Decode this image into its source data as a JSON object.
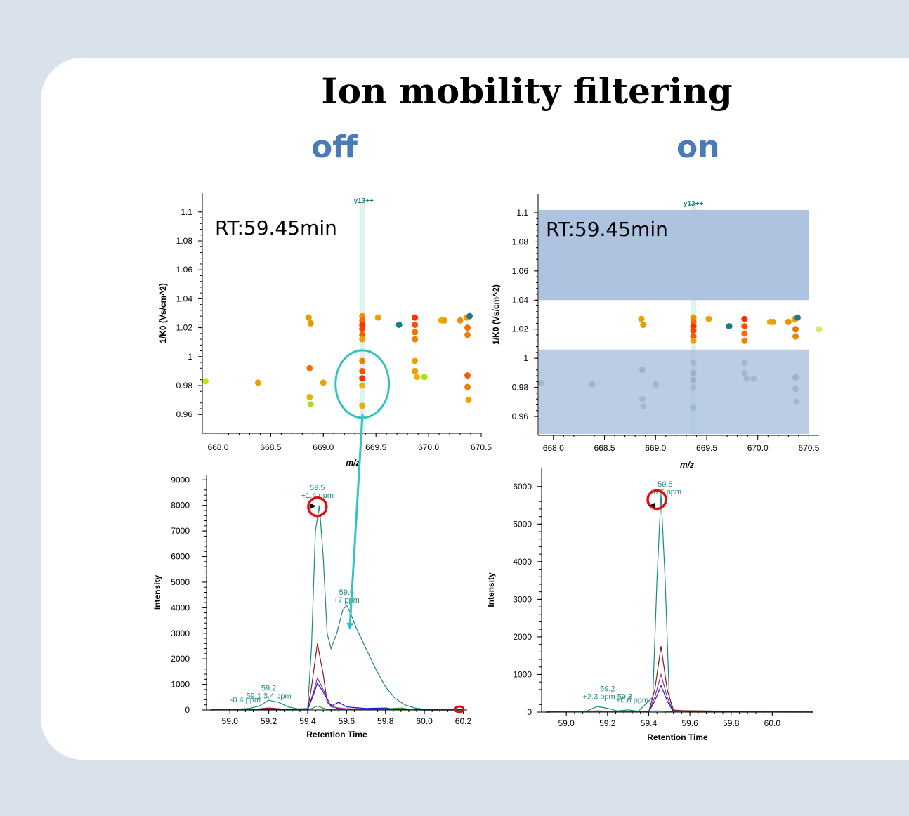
{
  "slide": {
    "title": "Ion mobility filtering",
    "off_label": "off",
    "on_label": "on",
    "colors": {
      "title": "#000000",
      "label": "#4a7ab8",
      "background": "#d9e2ea",
      "card": "#ffffff"
    }
  },
  "chart_data": [
    {
      "id": "scatter_off",
      "type": "scatter",
      "xlabel": "m/z",
      "ylabel": "1/K0 (Vs/cm^2)",
      "xlim": [
        667.85,
        670.5
      ],
      "ylim": [
        0.947,
        1.113
      ],
      "xticks": [
        "668.0",
        "668.5",
        "669.0",
        "669.5",
        "670.0",
        "670.5"
      ],
      "yticks": [
        "0.96",
        "0.98",
        "1",
        "1.02",
        "1.04",
        "1.06",
        "1.08",
        "1.1"
      ],
      "annotation": "RT:59.45min",
      "ion_label": "y13++",
      "ion_mz": 669.37,
      "highlight": {
        "mz": 669.37,
        "k0": 0.982
      },
      "points": [
        [
          667.88,
          0.983,
          "#c8e01a"
        ],
        [
          668.38,
          0.982,
          "#f0a000"
        ],
        [
          668.86,
          1.027,
          "#e8a000"
        ],
        [
          668.88,
          1.023,
          "#e89a00"
        ],
        [
          668.87,
          0.992,
          "#f07000"
        ],
        [
          668.87,
          0.972,
          "#e8b000"
        ],
        [
          668.88,
          0.967,
          "#a8e020"
        ],
        [
          669.0,
          0.982,
          "#f0a000"
        ],
        [
          669.37,
          1.028,
          "#f09000"
        ],
        [
          669.37,
          1.025,
          "#f07000"
        ],
        [
          669.37,
          1.022,
          "#ff3000"
        ],
        [
          669.37,
          1.019,
          "#ff4000"
        ],
        [
          669.37,
          1.015,
          "#f06000"
        ],
        [
          669.37,
          1.012,
          "#f0a000"
        ],
        [
          669.37,
          0.997,
          "#f08000"
        ],
        [
          669.37,
          0.99,
          "#ff5000"
        ],
        [
          669.37,
          0.985,
          "#ff3000"
        ],
        [
          669.37,
          0.98,
          "#f0b000"
        ],
        [
          669.37,
          0.966,
          "#e8b000"
        ],
        [
          669.52,
          1.027,
          "#f0a000"
        ],
        [
          669.72,
          1.022,
          "#1a7a8a"
        ],
        [
          669.87,
          1.027,
          "#ff3000"
        ],
        [
          669.87,
          1.022,
          "#ff5000"
        ],
        [
          669.87,
          1.017,
          "#f07000"
        ],
        [
          669.87,
          1.012,
          "#f08000"
        ],
        [
          669.87,
          0.997,
          "#f0a000"
        ],
        [
          669.87,
          0.99,
          "#e8a000"
        ],
        [
          669.89,
          0.986,
          "#f0b000"
        ],
        [
          669.96,
          0.986,
          "#a8e020"
        ],
        [
          670.12,
          1.025,
          "#e8b000"
        ],
        [
          670.15,
          1.025,
          "#e8a000"
        ],
        [
          670.3,
          1.025,
          "#f09000"
        ],
        [
          670.36,
          1.027,
          "#f0a000"
        ],
        [
          670.39,
          1.028,
          "#1a7a8a"
        ],
        [
          670.37,
          1.02,
          "#f07000"
        ],
        [
          670.37,
          1.015,
          "#f08000"
        ],
        [
          670.37,
          0.987,
          "#f06000"
        ],
        [
          670.37,
          0.979,
          "#f08000"
        ],
        [
          670.38,
          0.97,
          "#f0a000"
        ]
      ]
    },
    {
      "id": "scatter_on",
      "type": "scatter",
      "xlabel": "m/z",
      "ylabel": "1/K0 (Vs/cm^2)",
      "xlim": [
        667.85,
        670.6
      ],
      "ylim": [
        0.947,
        1.113
      ],
      "xticks": [
        "668.0",
        "668.5",
        "669.0",
        "669.5",
        "670.0",
        "670.5"
      ],
      "yticks": [
        "0.96",
        "0.98",
        "1",
        "1.02",
        "1.04",
        "1.06",
        "1.08",
        "1.1"
      ],
      "annotation": "RT:59.45min",
      "ion_label": "y13++",
      "ion_mz": 669.37,
      "filter_window": [
        1.006,
        1.04
      ],
      "points": [
        [
          667.88,
          0.983,
          "#88b060"
        ],
        [
          668.38,
          0.982,
          "#908060"
        ],
        [
          668.86,
          1.027,
          "#e8a000"
        ],
        [
          668.88,
          1.023,
          "#e89a00"
        ],
        [
          668.87,
          0.992,
          "#a06060"
        ],
        [
          668.87,
          0.972,
          "#90a060"
        ],
        [
          668.88,
          0.967,
          "#70b050"
        ],
        [
          669.0,
          0.982,
          "#908060"
        ],
        [
          669.37,
          1.028,
          "#f09000"
        ],
        [
          669.37,
          1.025,
          "#f07000"
        ],
        [
          669.37,
          1.022,
          "#ff3000"
        ],
        [
          669.37,
          1.019,
          "#ff4000"
        ],
        [
          669.37,
          1.015,
          "#f06000"
        ],
        [
          669.37,
          1.012,
          "#f0a000"
        ],
        [
          669.37,
          0.997,
          "#909060"
        ],
        [
          669.37,
          0.99,
          "#a06060"
        ],
        [
          669.37,
          0.985,
          "#a05050"
        ],
        [
          669.37,
          0.98,
          "#a0a060"
        ],
        [
          669.37,
          0.966,
          "#909060"
        ],
        [
          669.52,
          1.027,
          "#f0a000"
        ],
        [
          669.72,
          1.022,
          "#1a7a8a"
        ],
        [
          669.87,
          1.027,
          "#ff3000"
        ],
        [
          669.87,
          1.022,
          "#ff5000"
        ],
        [
          669.87,
          1.017,
          "#f07000"
        ],
        [
          669.87,
          1.012,
          "#f08000"
        ],
        [
          669.87,
          0.997,
          "#909060"
        ],
        [
          669.87,
          0.99,
          "#909060"
        ],
        [
          669.89,
          0.986,
          "#909060"
        ],
        [
          669.96,
          0.986,
          "#70b050"
        ],
        [
          670.12,
          1.025,
          "#e8b000"
        ],
        [
          670.15,
          1.025,
          "#e8a000"
        ],
        [
          670.3,
          1.025,
          "#f09000"
        ],
        [
          670.36,
          1.027,
          "#f0a000"
        ],
        [
          670.39,
          1.028,
          "#1a7a8a"
        ],
        [
          670.37,
          1.02,
          "#f07000"
        ],
        [
          670.37,
          1.015,
          "#f08000"
        ],
        [
          670.6,
          1.02,
          "#d8e860"
        ],
        [
          670.37,
          0.987,
          "#a06060"
        ],
        [
          670.37,
          0.979,
          "#a07070"
        ],
        [
          670.38,
          0.97,
          "#909060"
        ]
      ]
    },
    {
      "id": "xic_off",
      "type": "line",
      "xlabel": "Retention Time",
      "ylabel": "Intensity",
      "xlim": [
        58.88,
        60.22
      ],
      "ylim": [
        0,
        9200
      ],
      "xticks": [
        "59.0",
        "59.2",
        "59.4",
        "59.6",
        "59.8",
        "60.0",
        "60.2"
      ],
      "yticks": [
        "0",
        "1000",
        "2000",
        "3000",
        "4000",
        "5000",
        "6000",
        "7000",
        "8000",
        "9000"
      ],
      "apex_marker": [
        59.45,
        8000
      ],
      "end_marker": [
        60.18,
        0
      ],
      "series": [
        {
          "color": "#1a8a80",
          "points": [
            [
              58.9,
              0
            ],
            [
              59.0,
              20
            ],
            [
              59.1,
              60
            ],
            [
              59.15,
              150
            ],
            [
              59.2,
              380
            ],
            [
              59.25,
              300
            ],
            [
              59.3,
              120
            ],
            [
              59.35,
              40
            ],
            [
              59.4,
              60
            ],
            [
              59.42,
              2500
            ],
            [
              59.44,
              7000
            ],
            [
              59.46,
              8000
            ],
            [
              59.48,
              6000
            ],
            [
              59.5,
              3000
            ],
            [
              59.52,
              2400
            ],
            [
              59.55,
              3000
            ],
            [
              59.58,
              3900
            ],
            [
              59.6,
              4100
            ],
            [
              59.62,
              3800
            ],
            [
              59.65,
              3200
            ],
            [
              59.7,
              2400
            ],
            [
              59.75,
              1600
            ],
            [
              59.8,
              900
            ],
            [
              59.85,
              450
            ],
            [
              59.9,
              200
            ],
            [
              59.95,
              80
            ],
            [
              60.0,
              30
            ],
            [
              60.2,
              0
            ]
          ]
        },
        {
          "color": "#8b1a1a",
          "points": [
            [
              58.9,
              0
            ],
            [
              59.15,
              40
            ],
            [
              59.2,
              80
            ],
            [
              59.3,
              20
            ],
            [
              59.4,
              20
            ],
            [
              59.42,
              900
            ],
            [
              59.45,
              2600
            ],
            [
              59.48,
              1400
            ],
            [
              59.5,
              300
            ],
            [
              59.55,
              60
            ],
            [
              59.6,
              50
            ],
            [
              60.0,
              10
            ],
            [
              60.2,
              0
            ]
          ]
        },
        {
          "color": "#9a30b0",
          "points": [
            [
              58.9,
              0
            ],
            [
              59.2,
              40
            ],
            [
              59.4,
              20
            ],
            [
              59.43,
              700
            ],
            [
              59.45,
              1250
            ],
            [
              59.48,
              800
            ],
            [
              59.52,
              120
            ],
            [
              59.6,
              40
            ],
            [
              60.0,
              0
            ],
            [
              60.2,
              0
            ]
          ]
        },
        {
          "color": "#1a1ad0",
          "points": [
            [
              58.9,
              0
            ],
            [
              59.2,
              20
            ],
            [
              59.4,
              10
            ],
            [
              59.43,
              600
            ],
            [
              59.45,
              1050
            ],
            [
              59.48,
              700
            ],
            [
              59.52,
              150
            ],
            [
              59.56,
              300
            ],
            [
              59.6,
              120
            ],
            [
              59.7,
              60
            ],
            [
              59.8,
              80
            ],
            [
              59.85,
              30
            ],
            [
              60.0,
              0
            ],
            [
              60.2,
              0
            ]
          ]
        },
        {
          "color": "#20a040",
          "points": [
            [
              58.9,
              0
            ],
            [
              59.4,
              0
            ],
            [
              59.45,
              150
            ],
            [
              59.5,
              20
            ],
            [
              59.8,
              40
            ],
            [
              59.88,
              80
            ],
            [
              59.95,
              0
            ],
            [
              60.2,
              0
            ]
          ]
        }
      ],
      "labels": [
        {
          "lines": [
            "59.5",
            "+1.4 ppm"
          ],
          "at": [
            59.45,
            8600
          ]
        },
        {
          "lines": [
            "59.6",
            "+7 ppm"
          ],
          "at": [
            59.6,
            4500
          ]
        },
        {
          "lines": [
            "59.2",
            "59.1 3.4 ppm"
          ],
          "at": [
            59.2,
            750
          ]
        },
        {
          "lines": [
            "-0.4 ppm"
          ],
          "at": [
            59.08,
            300
          ]
        }
      ]
    },
    {
      "id": "xic_on",
      "type": "line",
      "xlabel": "Retention Time",
      "ylabel": "Intensity",
      "xlim": [
        58.88,
        60.2
      ],
      "ylim": [
        0,
        6500
      ],
      "xticks": [
        "59.0",
        "59.2",
        "59.4",
        "59.6",
        "59.8",
        "60.0"
      ],
      "yticks": [
        "0",
        "1000",
        "2000",
        "3000",
        "4000",
        "5000",
        "6000"
      ],
      "apex_marker": [
        59.46,
        5800
      ],
      "series": [
        {
          "color": "#1a8a80",
          "points": [
            [
              58.9,
              0
            ],
            [
              59.1,
              30
            ],
            [
              59.15,
              150
            ],
            [
              59.2,
              100
            ],
            [
              59.25,
              30
            ],
            [
              59.3,
              60
            ],
            [
              59.35,
              20
            ],
            [
              59.42,
              400
            ],
            [
              59.44,
              3500
            ],
            [
              59.46,
              5800
            ],
            [
              59.48,
              3500
            ],
            [
              59.5,
              400
            ],
            [
              59.52,
              60
            ],
            [
              59.6,
              20
            ],
            [
              60.2,
              0
            ]
          ]
        },
        {
          "color": "#8b1a1a",
          "points": [
            [
              58.9,
              0
            ],
            [
              59.15,
              30
            ],
            [
              59.4,
              10
            ],
            [
              59.43,
              600
            ],
            [
              59.46,
              1750
            ],
            [
              59.49,
              600
            ],
            [
              59.52,
              40
            ],
            [
              60.2,
              0
            ]
          ]
        },
        {
          "color": "#9a30b0",
          "points": [
            [
              58.9,
              0
            ],
            [
              59.2,
              20
            ],
            [
              59.4,
              10
            ],
            [
              59.43,
              400
            ],
            [
              59.46,
              1000
            ],
            [
              59.49,
              400
            ],
            [
              59.52,
              20
            ],
            [
              60.2,
              0
            ]
          ]
        },
        {
          "color": "#1a1ad0",
          "points": [
            [
              58.9,
              0
            ],
            [
              59.2,
              10
            ],
            [
              59.4,
              0
            ],
            [
              59.43,
              300
            ],
            [
              59.46,
              700
            ],
            [
              59.49,
              300
            ],
            [
              59.52,
              10
            ],
            [
              60.2,
              0
            ]
          ]
        },
        {
          "color": "#20a040",
          "points": [
            [
              58.9,
              0
            ],
            [
              59.45,
              30
            ],
            [
              59.6,
              0
            ],
            [
              60.2,
              0
            ]
          ]
        }
      ],
      "labels": [
        {
          "lines": [
            "59.5",
            "+0.6 ppm"
          ],
          "at": [
            59.48,
            6000
          ]
        },
        {
          "lines": [
            "59.2",
            "+2.3 ppm 59.3"
          ],
          "at": [
            59.2,
            550
          ]
        },
        {
          "lines": [
            "+0.6 ppm"
          ],
          "at": [
            59.32,
            250
          ]
        }
      ]
    }
  ]
}
